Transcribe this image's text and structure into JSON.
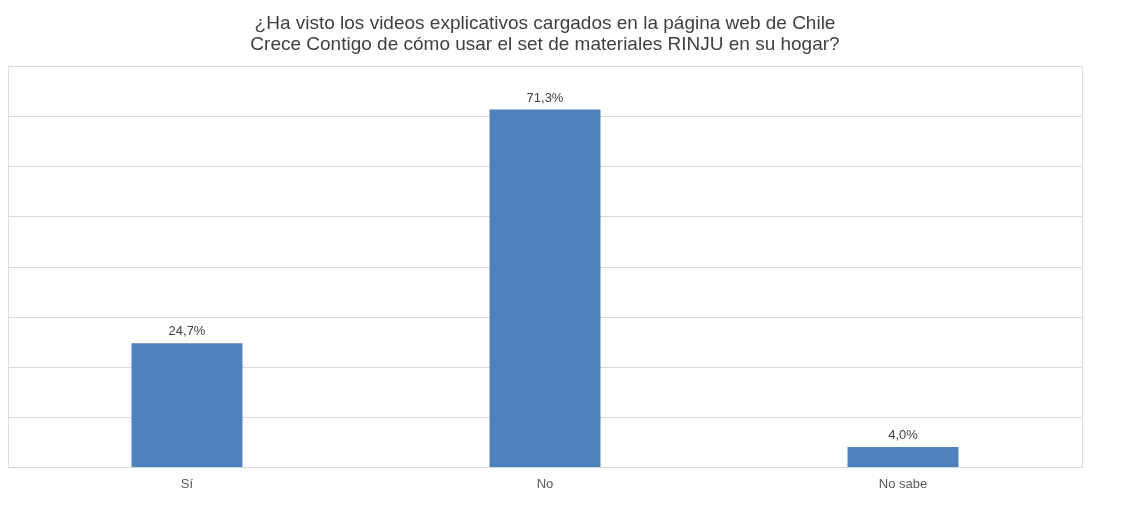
{
  "chart_data": {
    "type": "bar",
    "title": "¿Ha visto los videos explicativos cargados en la página web de Chile Crece Contigo de cómo usar el set de materiales RINJU en su hogar?",
    "categories": [
      "Sí",
      "No",
      "No sabe"
    ],
    "values": [
      24.7,
      71.3,
      4.0
    ],
    "value_labels": [
      "24,7%",
      "71,3%",
      "4,0%"
    ],
    "color": "#4f81bd",
    "ylim": [
      0,
      80
    ],
    "yticks": [
      {
        "value": 0,
        "label": null
      },
      {
        "value": 10,
        "label": null
      },
      {
        "value": 20,
        "label": null
      },
      {
        "value": 30,
        "label": null
      },
      {
        "value": 40,
        "label": null
      },
      {
        "value": 50,
        "label": null
      },
      {
        "value": 60,
        "label": null
      },
      {
        "value": 70,
        "label": null
      },
      {
        "value": 80,
        "label": null
      }
    ],
    "tick_labels": "x",
    "grid": "y"
  }
}
